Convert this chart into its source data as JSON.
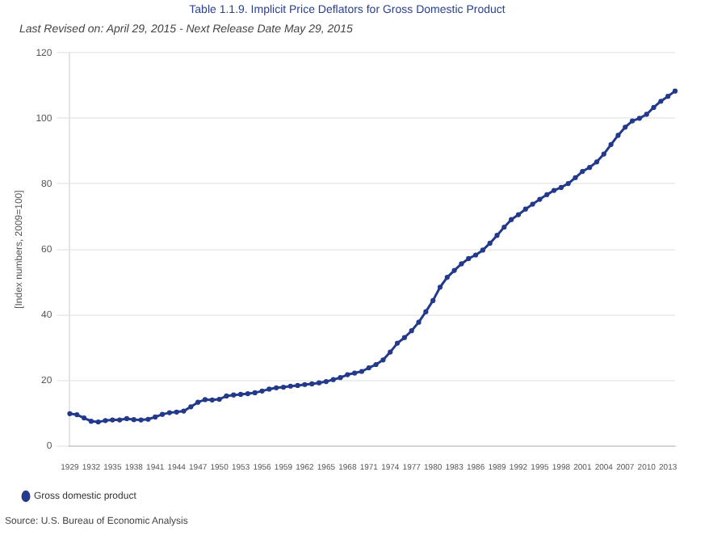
{
  "chart_data": {
    "type": "line",
    "title": "Table 1.1.9. Implicit Price Deflators for Gross Domestic Product",
    "subtitle": "Last Revised on: April 29, 2015 - Next Release Date May 29, 2015",
    "ylabel": "[Index numbers, 2009=100]",
    "categories": [
      "1929",
      null,
      null,
      "1932",
      null,
      null,
      "1935",
      null,
      null,
      "1938",
      null,
      null,
      "1941",
      null,
      null,
      "1944",
      null,
      null,
      "1947",
      null,
      null,
      "1950",
      null,
      null,
      "1953",
      null,
      null,
      "1956",
      null,
      null,
      "1959",
      null,
      null,
      "1962",
      null,
      null,
      "1965",
      null,
      null,
      "1968",
      null,
      null,
      "1971",
      null,
      null,
      "1974",
      null,
      null,
      "1977",
      null,
      null,
      "1980",
      null,
      null,
      "1983",
      null,
      null,
      "1986",
      null,
      null,
      "1989",
      null,
      null,
      "1992",
      null,
      null,
      "1995",
      null,
      null,
      "1998",
      null,
      null,
      "2001",
      null,
      null,
      "2004",
      null,
      null,
      "2007",
      null,
      null,
      "2010",
      null,
      null,
      "2013",
      null
    ],
    "series": [
      {
        "name": "Gross domestic product",
        "color": "#233a8c",
        "values": [
          9.9,
          9.6,
          8.6,
          7.6,
          7.4,
          7.8,
          8.0,
          8.0,
          8.4,
          8.1,
          8.0,
          8.2,
          8.9,
          9.7,
          10.2,
          10.4,
          10.7,
          12.0,
          13.4,
          14.2,
          14.1,
          14.3,
          15.3,
          15.6,
          15.8,
          16.0,
          16.3,
          16.8,
          17.4,
          17.8,
          18.0,
          18.3,
          18.5,
          18.8,
          19.0,
          19.3,
          19.7,
          20.3,
          20.9,
          21.8,
          22.3,
          22.8,
          23.9,
          24.9,
          26.3,
          28.7,
          31.4,
          33.1,
          35.2,
          37.8,
          41.0,
          44.4,
          48.5,
          51.5,
          53.6,
          55.6,
          57.2,
          58.3,
          59.8,
          61.9,
          64.3,
          66.8,
          69.1,
          70.6,
          72.3,
          73.8,
          75.3,
          76.7,
          78.0,
          78.9,
          80.1,
          81.9,
          83.8,
          85.0,
          86.7,
          89.1,
          92.0,
          94.8,
          97.3,
          99.2,
          100.0,
          101.2,
          103.3,
          105.2,
          106.7,
          108.3
        ]
      }
    ],
    "ylim": [
      0,
      120
    ],
    "yticks": [
      0,
      20,
      40,
      60,
      80,
      100,
      120
    ],
    "grid": "y",
    "legend": "bottom left",
    "marker": "circle",
    "line_style": "solid",
    "annotations": [
      "Source: U.S. Bureau of Economic Analysis"
    ]
  }
}
